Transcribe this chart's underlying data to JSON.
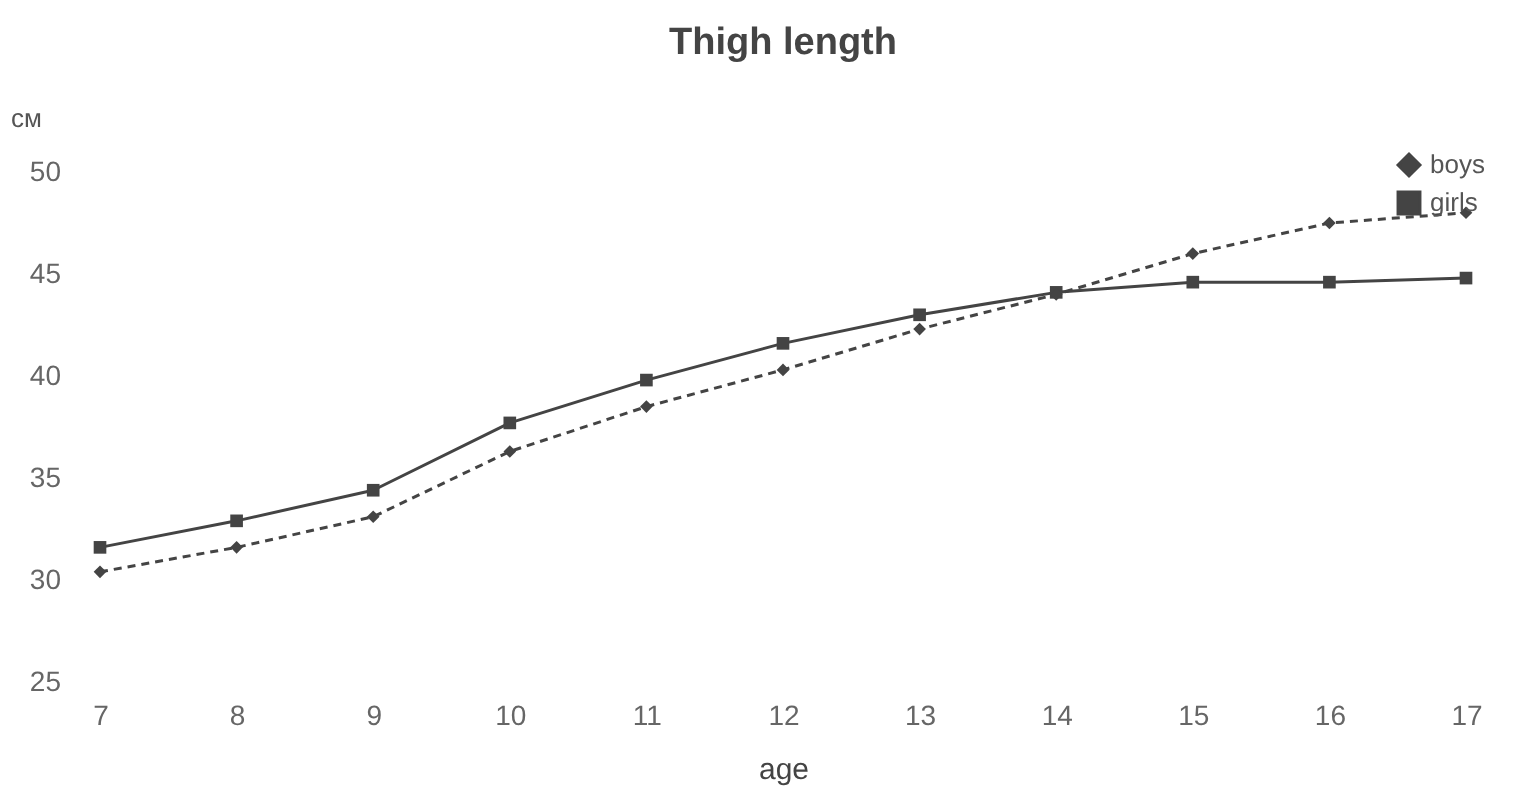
{
  "chart_data": {
    "type": "line",
    "title": "Thigh length",
    "xlabel": "age",
    "ylabel": "см",
    "x": [
      7,
      8,
      9,
      10,
      11,
      12,
      13,
      14,
      15,
      16,
      17
    ],
    "series": [
      {
        "name": "boys",
        "color": "#444444",
        "marker": "diamond",
        "line_style": "dashed",
        "values": [
          30.4,
          31.6,
          33.1,
          36.3,
          38.5,
          40.3,
          42.3,
          44.0,
          46.0,
          47.5,
          48.0
        ]
      },
      {
        "name": "girls",
        "color": "#444444",
        "marker": "square",
        "line_style": "solid",
        "values": [
          31.6,
          32.9,
          34.4,
          37.7,
          39.8,
          41.6,
          43.0,
          44.1,
          44.6,
          44.6,
          44.8
        ]
      }
    ],
    "xlim": [
      7,
      17
    ],
    "xticks": [
      7,
      8,
      9,
      10,
      11,
      12,
      13,
      14,
      15,
      16,
      17
    ],
    "ylim": [
      25,
      50
    ],
    "yticks": [
      25,
      30,
      35,
      40,
      45,
      50
    ],
    "grid": false,
    "legend": "top right"
  }
}
